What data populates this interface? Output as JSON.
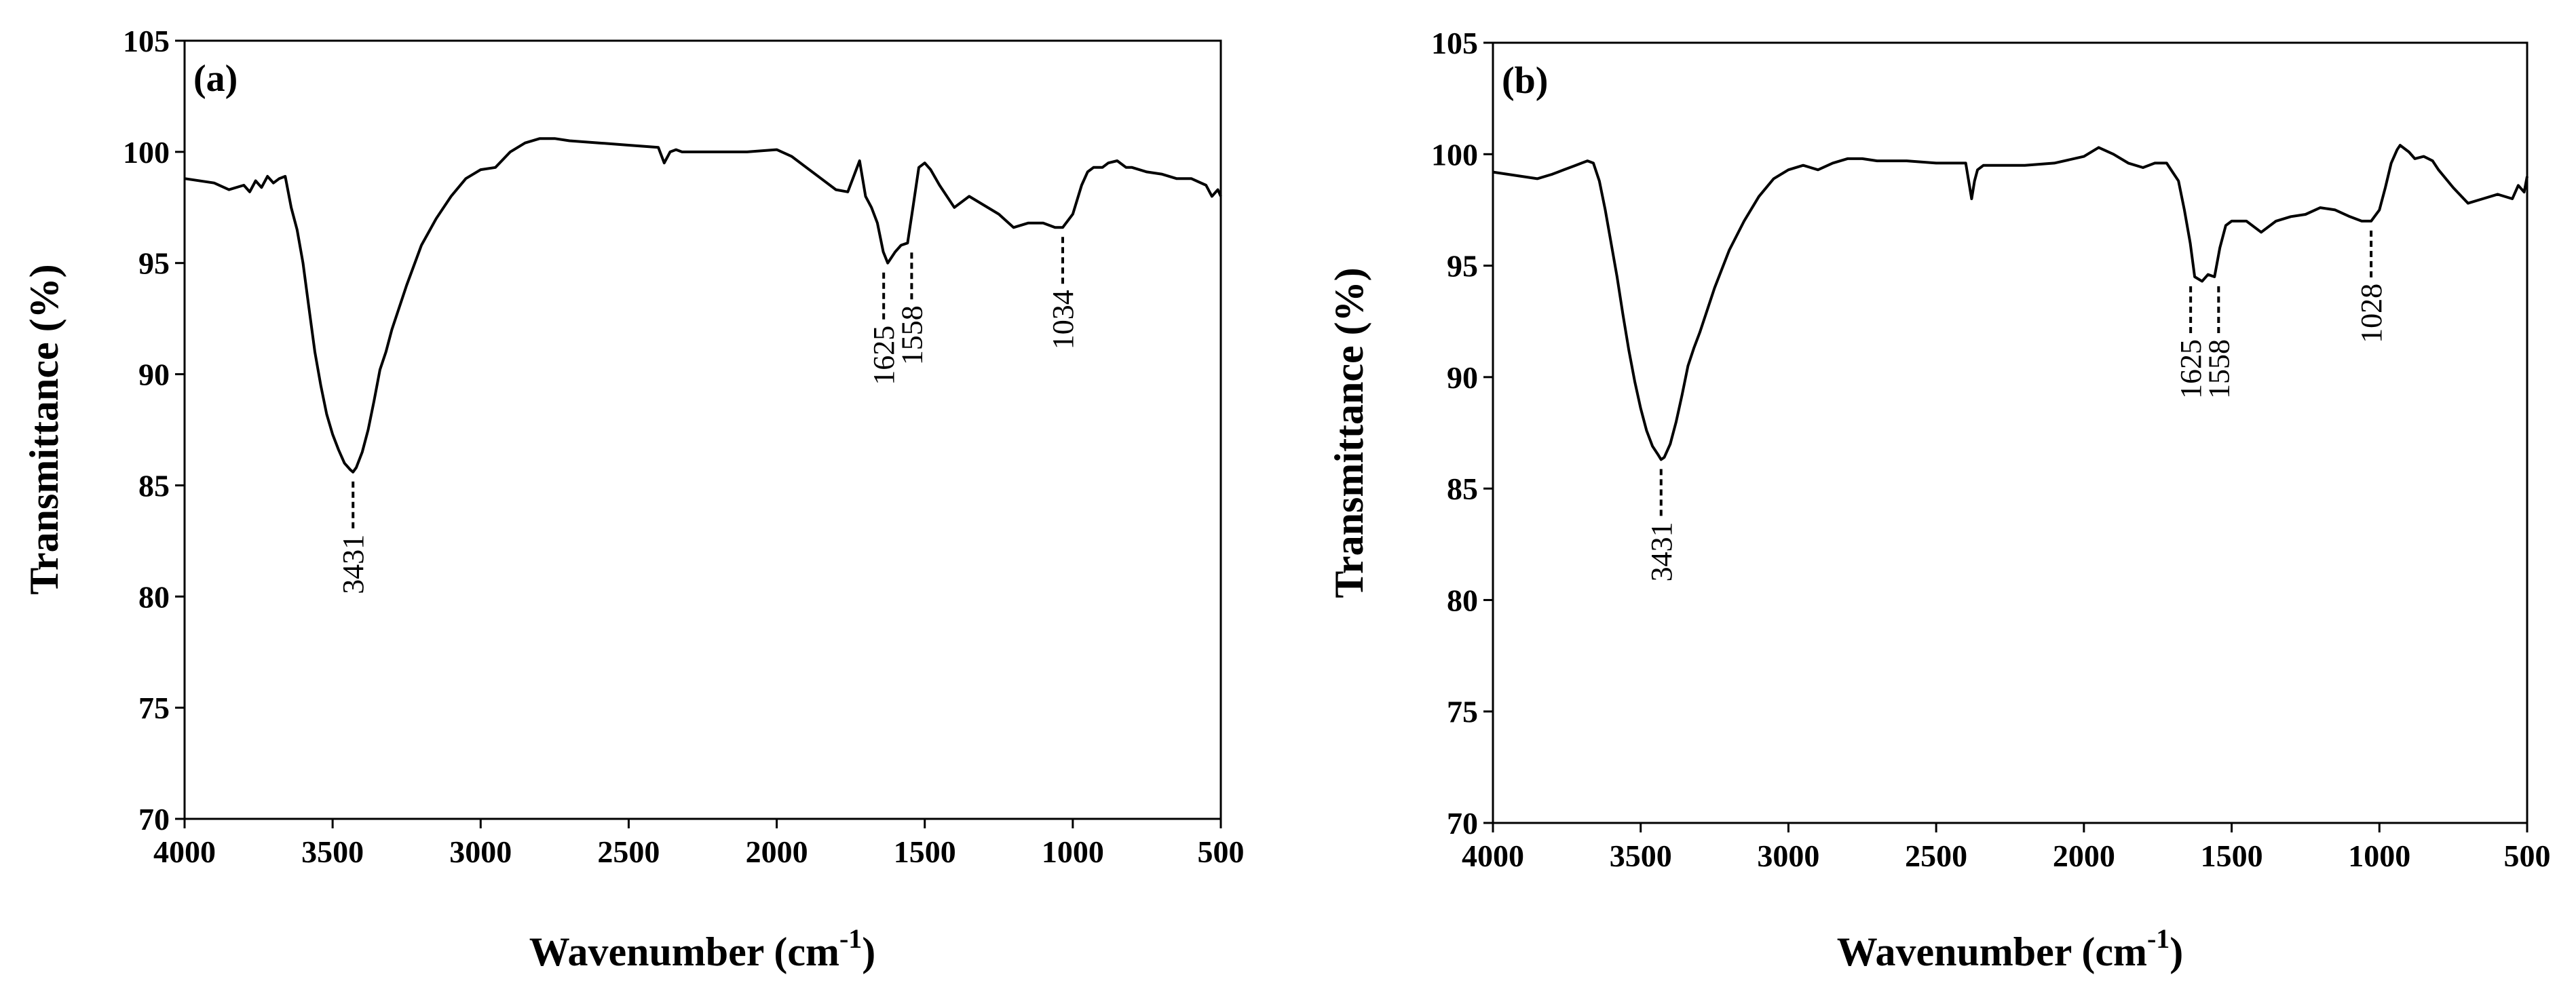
{
  "chart_data": [
    {
      "type": "line",
      "panel_label": "(a)",
      "xlabel_main": "Wavenumber (cm",
      "xlabel_sup": "-1",
      "xlabel_end": ")",
      "ylabel": "Transmittance (%)",
      "xlim": [
        4000,
        500
      ],
      "ylim": [
        70,
        105
      ],
      "x_ticks": [
        4000,
        3500,
        3000,
        2500,
        2000,
        1500,
        1000,
        500
      ],
      "y_ticks": [
        70,
        75,
        80,
        85,
        90,
        95,
        100,
        105
      ],
      "series": [
        {
          "name": "(a)",
          "x": [
            4000,
            3900,
            3850,
            3800,
            3780,
            3760,
            3740,
            3720,
            3700,
            3680,
            3660,
            3640,
            3620,
            3600,
            3580,
            3560,
            3540,
            3520,
            3500,
            3480,
            3460,
            3440,
            3431,
            3420,
            3400,
            3380,
            3360,
            3340,
            3320,
            3300,
            3250,
            3200,
            3150,
            3100,
            3050,
            3000,
            2950,
            2900,
            2850,
            2800,
            2750,
            2700,
            2600,
            2500,
            2400,
            2380,
            2360,
            2340,
            2320,
            2300,
            2200,
            2100,
            2000,
            1950,
            1900,
            1850,
            1800,
            1760,
            1740,
            1720,
            1700,
            1680,
            1660,
            1640,
            1625,
            1600,
            1580,
            1558,
            1540,
            1520,
            1500,
            1480,
            1450,
            1400,
            1350,
            1300,
            1250,
            1200,
            1150,
            1100,
            1060,
            1034,
            1000,
            970,
            950,
            930,
            900,
            880,
            850,
            820,
            800,
            750,
            700,
            650,
            600,
            550,
            530,
            510,
            500
          ],
          "y": [
            98.8,
            98.6,
            98.3,
            98.5,
            98.2,
            98.7,
            98.4,
            98.9,
            98.6,
            98.8,
            98.9,
            97.5,
            96.5,
            95.0,
            93.0,
            91.0,
            89.5,
            88.2,
            87.3,
            86.6,
            86.0,
            85.7,
            85.6,
            85.8,
            86.5,
            87.5,
            88.8,
            90.2,
            91.0,
            92.0,
            94.0,
            95.8,
            97.0,
            98.0,
            98.8,
            99.2,
            99.3,
            100.0,
            100.4,
            100.6,
            100.6,
            100.5,
            100.4,
            100.3,
            100.2,
            99.5,
            100.0,
            100.1,
            100.0,
            100.0,
            100.0,
            100.0,
            100.1,
            99.8,
            99.3,
            98.8,
            98.3,
            98.2,
            98.9,
            99.6,
            98.0,
            97.5,
            96.8,
            95.5,
            95.0,
            95.5,
            95.8,
            95.9,
            97.5,
            99.3,
            99.5,
            99.2,
            98.5,
            97.5,
            98.0,
            97.6,
            97.2,
            96.6,
            96.8,
            96.8,
            96.6,
            96.6,
            97.2,
            98.5,
            99.1,
            99.3,
            99.3,
            99.5,
            99.6,
            99.3,
            99.3,
            99.1,
            99.0,
            98.8,
            98.8,
            98.5,
            98.0,
            98.3,
            98.0
          ]
        }
      ],
      "annotations": [
        {
          "label": "3431",
          "x": 3431
        },
        {
          "label": "1625",
          "x": 1625
        },
        {
          "label": "1558",
          "x": 1558
        },
        {
          "label": "1034",
          "x": 1034
        }
      ]
    },
    {
      "type": "line",
      "panel_label": "(b)",
      "xlabel_main": "Wavenumber (cm",
      "xlabel_sup": "-1",
      "xlabel_end": ")",
      "ylabel": "Transmittance (%)",
      "xlim": [
        4000,
        500
      ],
      "ylim": [
        70,
        105
      ],
      "x_ticks": [
        4000,
        3500,
        3000,
        2500,
        2000,
        1500,
        1000,
        500
      ],
      "y_ticks": [
        70,
        75,
        80,
        85,
        90,
        95,
        100,
        105
      ],
      "series": [
        {
          "name": "(b)",
          "x": [
            4000,
            3900,
            3850,
            3800,
            3780,
            3760,
            3740,
            3720,
            3700,
            3680,
            3660,
            3640,
            3620,
            3600,
            3580,
            3560,
            3540,
            3520,
            3500,
            3480,
            3460,
            3440,
            3431,
            3420,
            3400,
            3380,
            3360,
            3340,
            3320,
            3300,
            3250,
            3200,
            3150,
            3100,
            3050,
            3000,
            2950,
            2900,
            2850,
            2800,
            2750,
            2700,
            2600,
            2500,
            2400,
            2380,
            2370,
            2360,
            2340,
            2300,
            2200,
            2100,
            2000,
            1950,
            1900,
            1850,
            1800,
            1760,
            1720,
            1700,
            1680,
            1660,
            1640,
            1625,
            1600,
            1580,
            1558,
            1540,
            1520,
            1500,
            1450,
            1400,
            1350,
            1300,
            1250,
            1200,
            1150,
            1100,
            1060,
            1028,
            1000,
            980,
            960,
            940,
            930,
            900,
            880,
            850,
            820,
            800,
            750,
            700,
            650,
            600,
            550,
            530,
            510,
            500
          ],
          "y": [
            99.2,
            99.0,
            98.9,
            99.1,
            99.2,
            99.3,
            99.4,
            99.5,
            99.6,
            99.7,
            99.6,
            98.8,
            97.5,
            96.0,
            94.5,
            92.8,
            91.2,
            89.8,
            88.6,
            87.6,
            86.9,
            86.5,
            86.3,
            86.4,
            87.0,
            88.0,
            89.2,
            90.5,
            91.3,
            92.0,
            94.0,
            95.7,
            97.0,
            98.1,
            98.9,
            99.3,
            99.5,
            99.3,
            99.6,
            99.8,
            99.8,
            99.7,
            99.7,
            99.6,
            99.6,
            98.0,
            98.8,
            99.3,
            99.5,
            99.5,
            99.5,
            99.6,
            99.9,
            100.3,
            100.0,
            99.6,
            99.4,
            99.6,
            99.6,
            99.2,
            98.8,
            97.5,
            96.0,
            94.5,
            94.3,
            94.6,
            94.5,
            95.8,
            96.8,
            97.0,
            97.0,
            96.5,
            97.0,
            97.2,
            97.3,
            97.6,
            97.5,
            97.2,
            97.0,
            97.0,
            97.5,
            98.5,
            99.6,
            100.2,
            100.4,
            100.1,
            99.8,
            99.9,
            99.7,
            99.3,
            98.5,
            97.8,
            98.0,
            98.2,
            98.0,
            98.6,
            98.3,
            99.0
          ]
        }
      ],
      "annotations": [
        {
          "label": "3431",
          "x": 3431
        },
        {
          "label": "1625",
          "x": 1625
        },
        {
          "label": "1558",
          "x": 1558
        },
        {
          "label": "1028",
          "x": 1028
        }
      ]
    }
  ]
}
